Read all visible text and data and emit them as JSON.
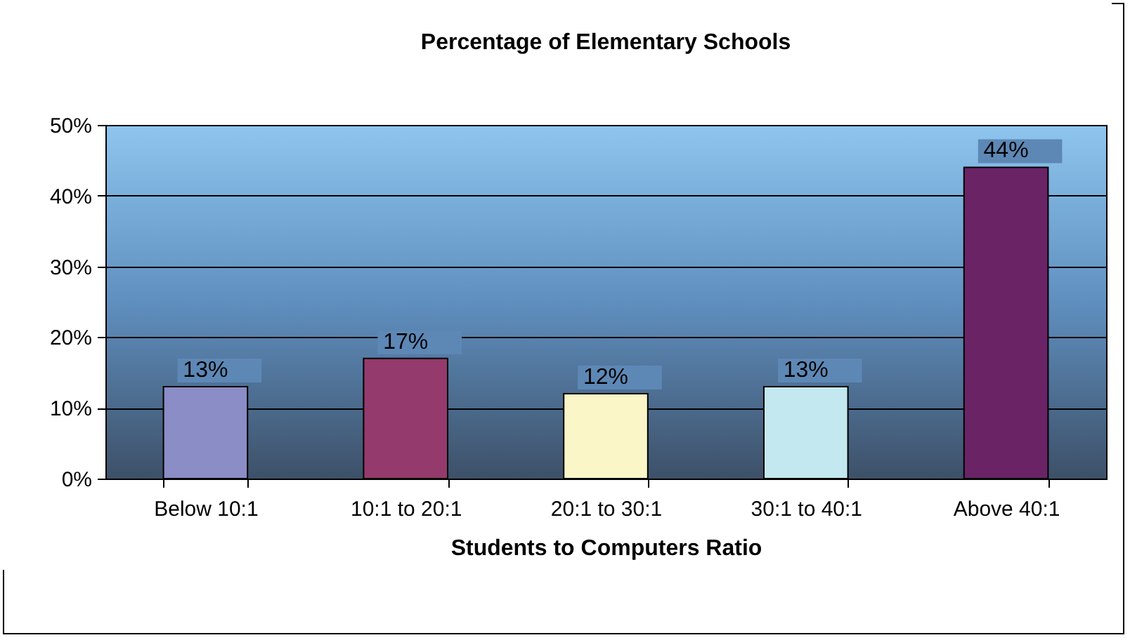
{
  "chart_data": {
    "type": "bar",
    "title": "Percentage of Elementary Schools",
    "xlabel": "Students to Computers Ratio",
    "categories": [
      "Below 10:1",
      "10:1 to 20:1",
      "20:1 to 30:1",
      "30:1 to 40:1",
      "Above 40:1"
    ],
    "values": [
      13,
      17,
      12,
      13,
      44
    ],
    "value_labels": [
      "13%",
      "17%",
      "12%",
      "13%",
      "44%"
    ],
    "colors": [
      "#8b8dc6",
      "#953a6c",
      "#faf6c8",
      "#c4e8f0",
      "#6a2466"
    ],
    "ylim": [
      0,
      50
    ],
    "yticks": [
      {
        "value": 0,
        "label": "0%"
      },
      {
        "value": 10,
        "label": "10%"
      },
      {
        "value": 20,
        "label": "20%"
      },
      {
        "value": 30,
        "label": "30%"
      },
      {
        "value": 40,
        "label": "40%"
      },
      {
        "value": 50,
        "label": "50%"
      }
    ],
    "grid": "y",
    "legend": false
  }
}
